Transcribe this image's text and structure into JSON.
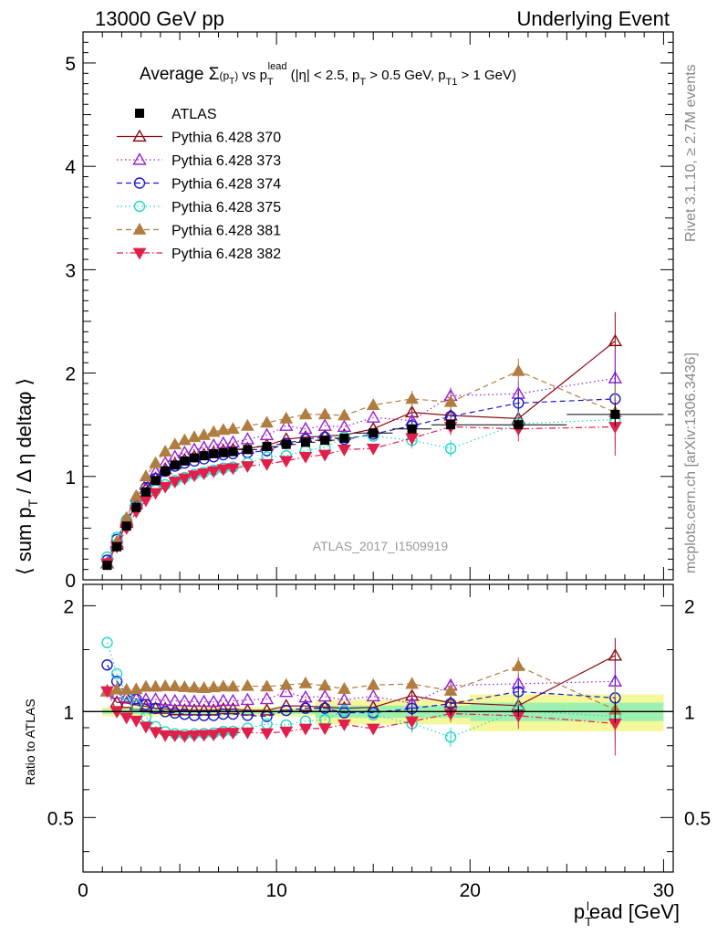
{
  "header": {
    "left": "13000 GeV pp",
    "right": "Underlying Event"
  },
  "side_labels": {
    "rivet": "Rivet 3.1.10, ≥ 2.7M events",
    "site": "mcplots.cern.ch [arXiv:1306.3436]"
  },
  "chart_data": {
    "type": "line",
    "title": {
      "prefix": "Average ",
      "sigma": "Σ",
      "p1": "(p",
      "p1_sub": "T",
      "p1_close": ")",
      "vs": " vs p",
      "vs_sub": "T",
      "vs_sup": "lead",
      "cuts1": " (|η| < 2.5, p",
      "cuts1_sub": "T",
      "cuts2": " > 0.5 GeV, p",
      "cuts2_sub": "T1",
      "cuts3": " > 1 GeV)"
    },
    "ylabel": {
      "a": "⟨ sum p",
      "a_sub": "T",
      "b": " / Δ η deltaφ ⟩"
    },
    "xlabel": {
      "a": "p",
      "a_sub": "T",
      "a_sup": "l",
      "b": "ead [GeV]"
    },
    "ratio_ylabel": "Ratio to ATLAS",
    "watermark": "ATLAS_2017_I1509919",
    "xlim": [
      0,
      30.5
    ],
    "ylim_main": [
      0,
      5.3
    ],
    "ylim_ratio": [
      0.35,
      2.3
    ],
    "ratio_log": true,
    "x_ticks": [
      "0",
      "10",
      "20",
      "30"
    ],
    "y_ticks_main": [
      "0",
      "1",
      "2",
      "3",
      "4",
      "5"
    ],
    "y_ticks_ratio": [
      "0.5",
      "1",
      "2"
    ],
    "legend_position": "top-left",
    "data_x": [
      1.25,
      1.75,
      2.25,
      2.75,
      3.25,
      3.75,
      4.25,
      4.75,
      5.25,
      5.75,
      6.25,
      6.75,
      7.25,
      7.75,
      8.5,
      9.5,
      10.5,
      11.5,
      12.5,
      13.5,
      15,
      17,
      19,
      22.5,
      27.5
    ],
    "data_xerr": [
      0.25,
      0.25,
      0.25,
      0.25,
      0.25,
      0.25,
      0.25,
      0.25,
      0.25,
      0.25,
      0.25,
      0.25,
      0.25,
      0.25,
      0.5,
      0.5,
      0.5,
      0.5,
      0.5,
      0.5,
      1,
      1,
      1,
      2.5,
      2.5
    ],
    "series": [
      {
        "name": "ATLAS",
        "color": "#000000",
        "marker": "square-filled",
        "line": "none",
        "values": [
          0.14,
          0.32,
          0.52,
          0.7,
          0.85,
          0.96,
          1.05,
          1.11,
          1.15,
          1.18,
          1.2,
          1.22,
          1.23,
          1.24,
          1.26,
          1.29,
          1.31,
          1.33,
          1.35,
          1.37,
          1.42,
          1.46,
          1.5,
          1.5,
          1.6
        ]
      },
      {
        "name": "Pythia 6.428 370",
        "color": "#8b0c16",
        "marker": "triangle-up-open",
        "line": "solid",
        "values": [
          0.16,
          0.34,
          0.55,
          0.73,
          0.88,
          0.98,
          1.07,
          1.12,
          1.16,
          1.19,
          1.21,
          1.23,
          1.25,
          1.26,
          1.27,
          1.3,
          1.36,
          1.38,
          1.39,
          1.4,
          1.46,
          1.62,
          1.59,
          1.56,
          2.31
        ]
      },
      {
        "name": "Pythia 6.428 373",
        "color": "#9b20d0",
        "marker": "triangle-up-open",
        "line": "dotted",
        "values": [
          0.16,
          0.36,
          0.57,
          0.76,
          0.92,
          1.04,
          1.13,
          1.19,
          1.23,
          1.26,
          1.28,
          1.3,
          1.32,
          1.33,
          1.36,
          1.4,
          1.49,
          1.46,
          1.49,
          1.48,
          1.57,
          1.54,
          1.78,
          1.8,
          1.95
        ]
      },
      {
        "name": "Pythia 6.428 374",
        "color": "#1a1acc",
        "marker": "circle-open",
        "line": "dashed",
        "values": [
          0.19,
          0.39,
          0.58,
          0.76,
          0.89,
          0.98,
          1.05,
          1.1,
          1.13,
          1.15,
          1.17,
          1.19,
          1.21,
          1.22,
          1.23,
          1.25,
          1.32,
          1.36,
          1.38,
          1.36,
          1.41,
          1.49,
          1.58,
          1.71,
          1.75
        ]
      },
      {
        "name": "Pythia 6.428 375",
        "color": "#20d8c8",
        "marker": "circle-open",
        "line": "dotted",
        "values": [
          0.22,
          0.41,
          0.58,
          0.73,
          0.82,
          0.87,
          0.92,
          0.96,
          0.99,
          1.02,
          1.04,
          1.06,
          1.08,
          1.09,
          1.13,
          1.19,
          1.2,
          1.25,
          1.28,
          1.38,
          1.39,
          1.35,
          1.27,
          1.51,
          1.55
        ]
      },
      {
        "name": "Pythia 6.428 381",
        "color": "#b07d40",
        "marker": "triangle-up-filled",
        "line": "dashed",
        "values": [
          0.16,
          0.37,
          0.6,
          0.81,
          1.0,
          1.13,
          1.24,
          1.31,
          1.35,
          1.38,
          1.4,
          1.43,
          1.45,
          1.46,
          1.49,
          1.52,
          1.56,
          1.6,
          1.6,
          1.59,
          1.69,
          1.75,
          1.72,
          2.02,
          1.62
        ]
      },
      {
        "name": "Pythia 6.428 382",
        "color": "#e0204a",
        "marker": "triangle-down-filled",
        "line": "dashdot",
        "values": [
          0.16,
          0.32,
          0.5,
          0.66,
          0.77,
          0.84,
          0.9,
          0.95,
          0.98,
          1.01,
          1.03,
          1.05,
          1.07,
          1.08,
          1.1,
          1.12,
          1.15,
          1.19,
          1.21,
          1.26,
          1.27,
          1.37,
          1.48,
          1.46,
          1.48
        ]
      }
    ]
  }
}
